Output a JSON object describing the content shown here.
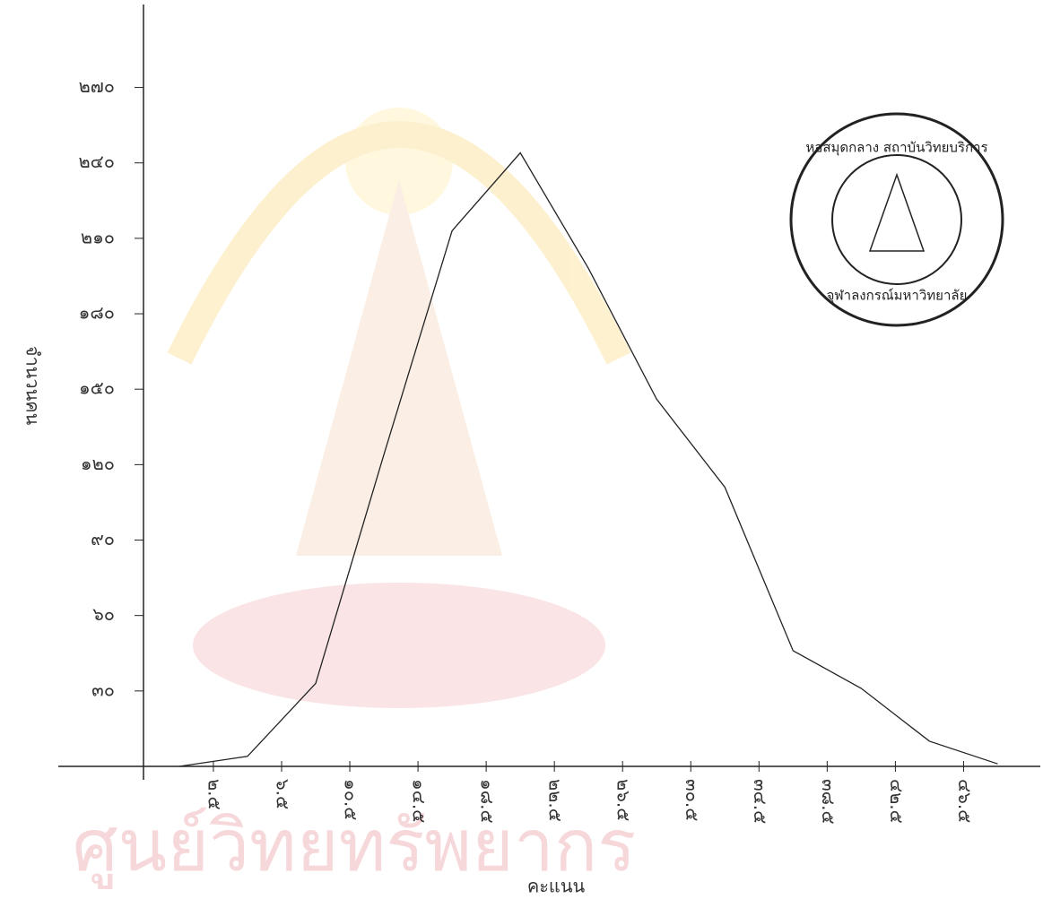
{
  "chart_data": {
    "type": "line",
    "y_label": "จำนวนคน",
    "x_label": "คะแนน",
    "x": [
      0.5,
      4.5,
      8.5,
      12.5,
      16.5,
      20.5,
      24.5,
      28.5,
      32.5,
      36.5,
      40.5,
      44.5,
      48.5
    ],
    "series": [
      {
        "color": "#222222",
        "values": [
          0,
          4,
          33,
          124,
          213,
          244,
          198,
          146,
          111,
          46,
          31,
          10,
          1
        ]
      }
    ],
    "xlim": [
      -1.6,
      51
    ],
    "xticks": [
      {
        "value": 2.5,
        "label": "๒.๕"
      },
      {
        "value": 6.5,
        "label": "๖.๕"
      },
      {
        "value": 10.5,
        "label": "๑๐.๕"
      },
      {
        "value": 14.5,
        "label": "๑๔.๕"
      },
      {
        "value": 18.5,
        "label": "๑๘.๕"
      },
      {
        "value": 22.5,
        "label": "๒๒.๕"
      },
      {
        "value": 26.5,
        "label": "๒๖.๕"
      },
      {
        "value": 30.5,
        "label": "๓๐.๕"
      },
      {
        "value": 34.5,
        "label": "๓๔.๕"
      },
      {
        "value": 38.5,
        "label": "๓๘.๕"
      },
      {
        "value": 42.5,
        "label": "๔๒.๕"
      },
      {
        "value": 46.5,
        "label": "๔๖.๕"
      }
    ],
    "ylim": [
      0,
      303
    ],
    "yticks": [
      {
        "value": 30,
        "label": "๓๐"
      },
      {
        "value": 60,
        "label": "๖๐"
      },
      {
        "value": 90,
        "label": "๙๐"
      },
      {
        "value": 120,
        "label": "๑๒๐"
      },
      {
        "value": 150,
        "label": "๑๕๐"
      },
      {
        "value": 180,
        "label": "๑๘๐"
      },
      {
        "value": 210,
        "label": "๒๑๐"
      },
      {
        "value": 240,
        "label": "๒๔๐"
      },
      {
        "value": 270,
        "label": "๒๗๐"
      }
    ],
    "grid": false
  },
  "watermark": "ศูนย์วิทยทรัพยากร",
  "stamp": {
    "top": "หอสมุดกลาง สถาบันวิทยบริการ",
    "bottom": "จุฬาลงกรณ์มหาวิทยาลัย"
  }
}
